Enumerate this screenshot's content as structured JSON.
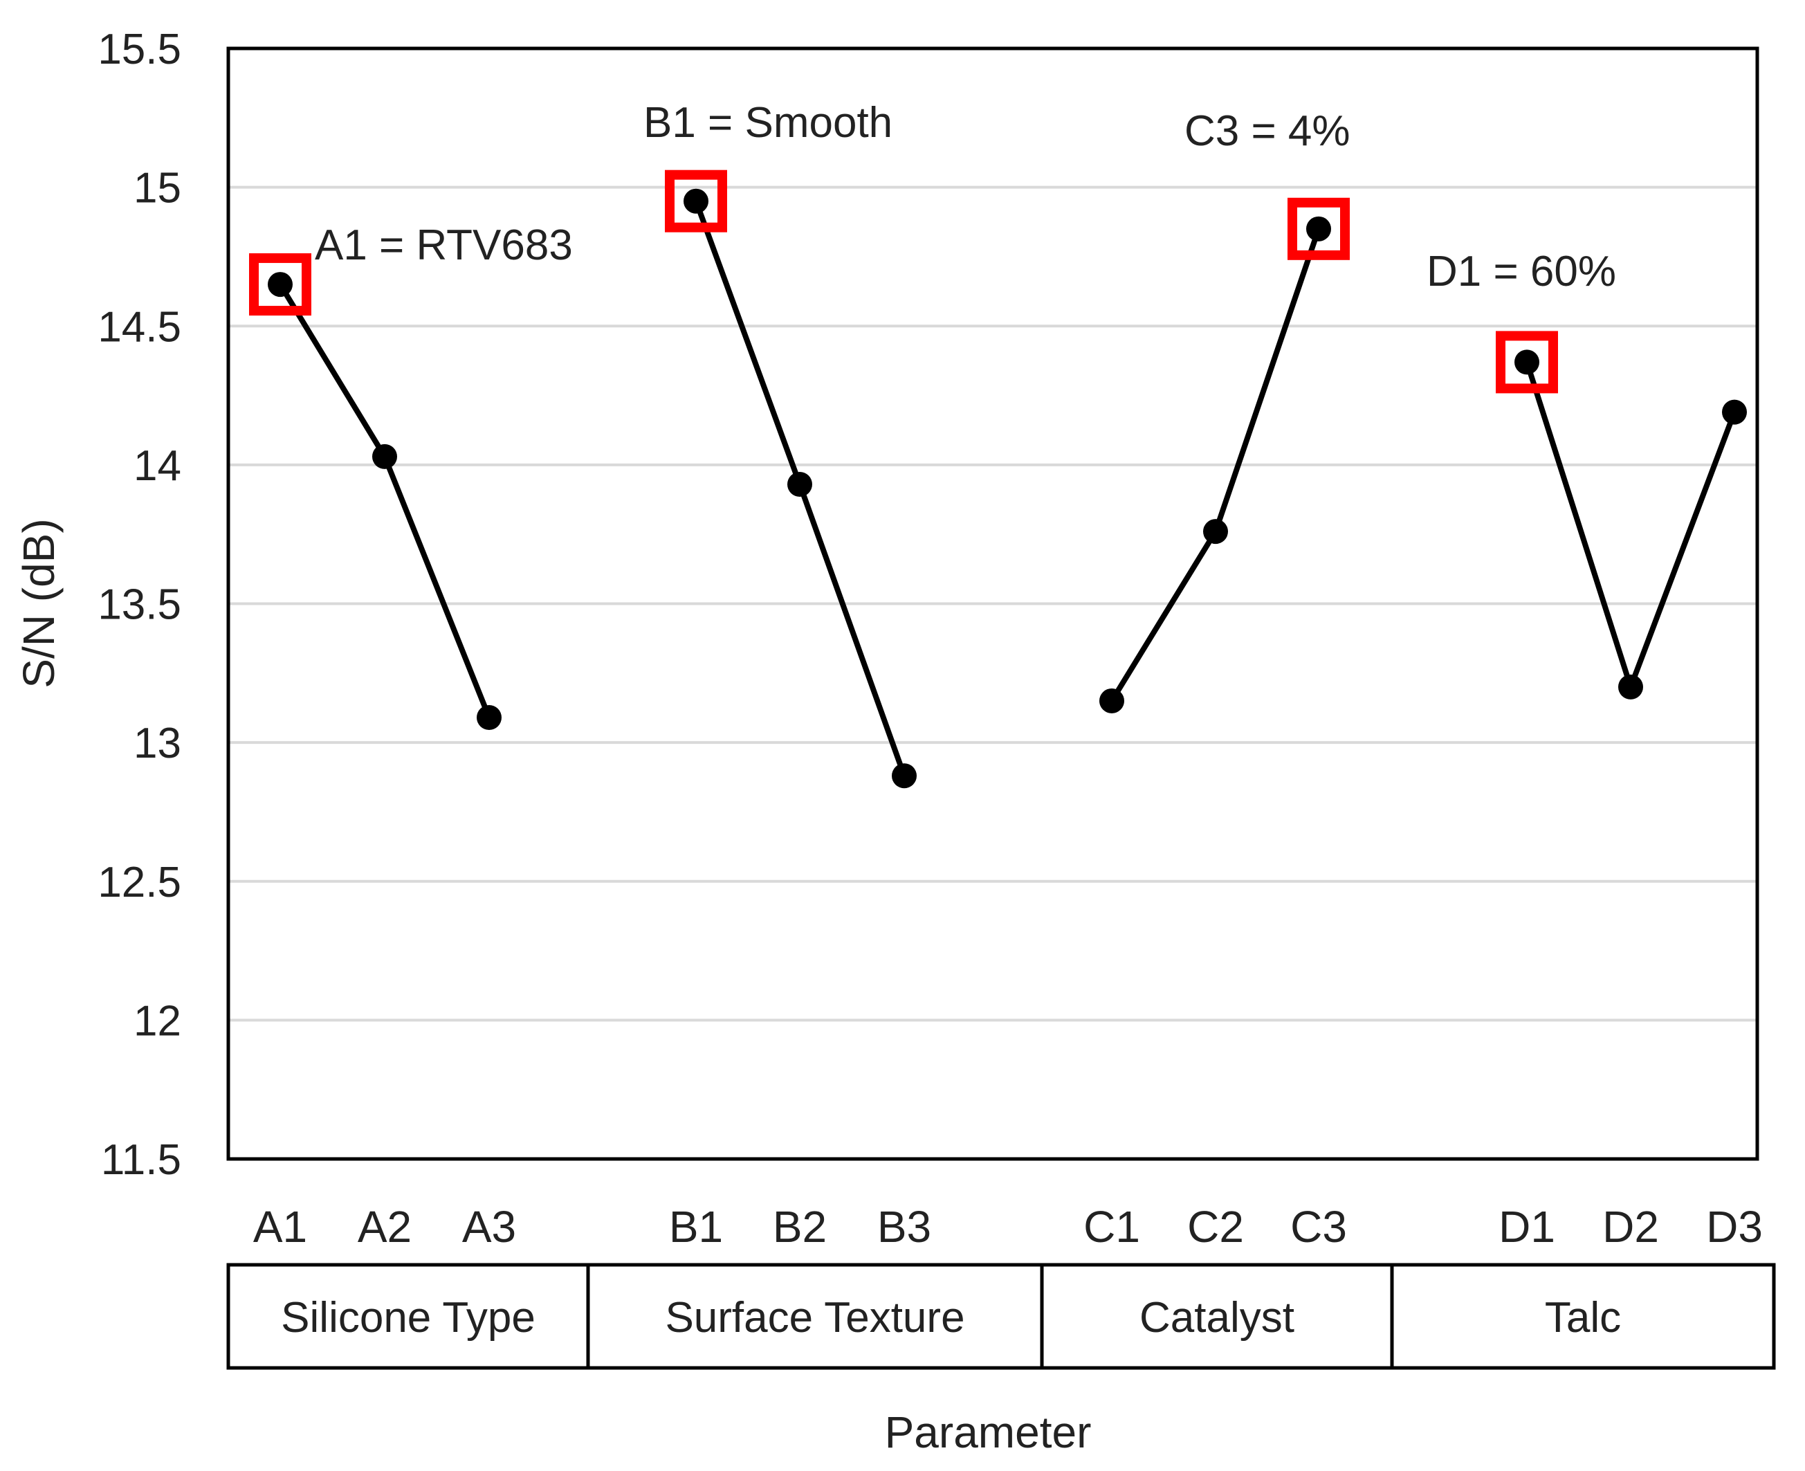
{
  "chart_data": {
    "type": "line",
    "title": "",
    "xlabel": "Parameter",
    "ylabel": "S/N (dB)",
    "ylim": [
      11.5,
      15.5
    ],
    "yticks": [
      11.5,
      12,
      12.5,
      13,
      13.5,
      14,
      14.5,
      15,
      15.5
    ],
    "ytick_labels": [
      "11.5",
      "12",
      "12.5",
      "13",
      "13.5",
      "14",
      "14.5",
      "15",
      "15.5"
    ],
    "grid": true,
    "highlight_color": "#ff0000",
    "line_color": "#000000",
    "groups": [
      {
        "name": "Silicone Type",
        "categories": [
          "A1",
          "A2",
          "A3"
        ],
        "values": [
          14.65,
          14.03,
          13.09
        ],
        "highlight": 0,
        "annotation": "A1 = RTV683"
      },
      {
        "name": "Surface Texture",
        "categories": [
          "B1",
          "B2",
          "B3"
        ],
        "values": [
          14.95,
          13.93,
          12.88
        ],
        "highlight": 0,
        "annotation": "B1 = Smooth"
      },
      {
        "name": "Catalyst",
        "categories": [
          "C1",
          "C2",
          "C3"
        ],
        "values": [
          13.15,
          13.76,
          14.85
        ],
        "highlight": 2,
        "annotation": "C3 = 4%"
      },
      {
        "name": "Talc",
        "categories": [
          "D1",
          "D2",
          "D3"
        ],
        "values": [
          14.37,
          13.2,
          14.19
        ],
        "highlight": 0,
        "annotation": "D1 = 60%"
      }
    ]
  }
}
